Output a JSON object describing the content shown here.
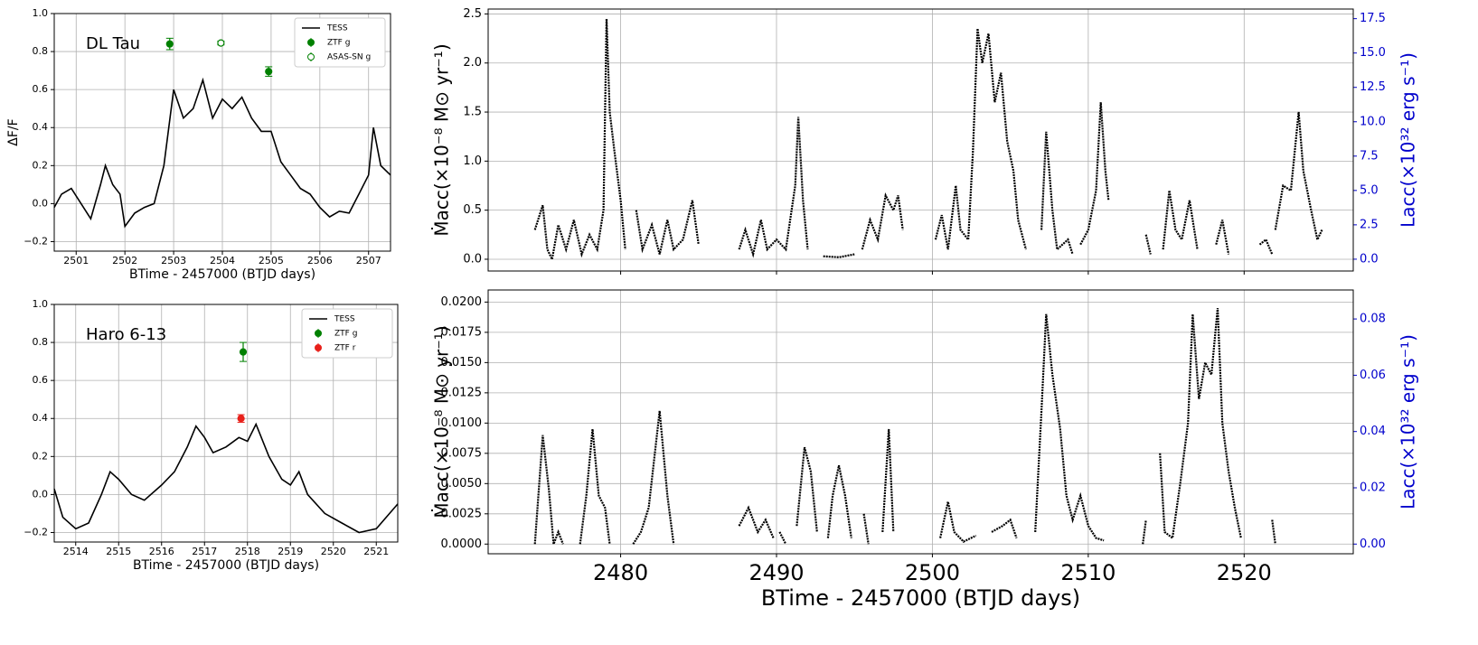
{
  "chart_data": [
    {
      "type": "line",
      "annotation": "DL Tau",
      "ylabel": "ΔF/F",
      "xlabel": "BTime - 2457000 (BTJD days)",
      "xlim": [
        2500.55,
        2507.45
      ],
      "xticks": [
        2501,
        2502,
        2503,
        2504,
        2505,
        2506,
        2507
      ],
      "ylim": [
        -0.25,
        1.0
      ],
      "yticks": [
        {
          "value": -0.2,
          "label": "−0.2"
        },
        {
          "value": 0,
          "label": "0.0"
        },
        0.2,
        0.4,
        0.6,
        0.8,
        {
          "value": 1,
          "label": "1.0"
        }
      ],
      "grid": true,
      "legend": "upper right",
      "series": [
        {
          "name": "TESS",
          "color": "#000000",
          "x": [
            2500.55,
            2500.7,
            2500.9,
            2501.1,
            2501.3,
            2501.5,
            2501.6,
            2501.75,
            2501.9,
            2502.0,
            2502.2,
            2502.4,
            2502.6,
            2502.8,
            2503.0,
            2503.2,
            2503.4,
            2503.6,
            2503.8,
            2504.0,
            2504.2,
            2504.4,
            2504.6,
            2504.8,
            2505.0,
            2505.2,
            2505.4,
            2505.6,
            2505.8,
            2506.0,
            2506.2,
            2506.4,
            2506.6,
            2506.8,
            2507.0,
            2507.1,
            2507.25,
            2507.45
          ],
          "values": [
            -0.02,
            0.05,
            0.08,
            0.0,
            -0.08,
            0.1,
            0.2,
            0.1,
            0.05,
            -0.12,
            -0.05,
            -0.02,
            0.0,
            0.2,
            0.6,
            0.45,
            0.5,
            0.65,
            0.45,
            0.55,
            0.5,
            0.56,
            0.45,
            0.38,
            0.38,
            0.22,
            0.15,
            0.08,
            0.05,
            -0.02,
            -0.07,
            -0.04,
            -0.05,
            0.05,
            0.15,
            0.4,
            0.2,
            0.15
          ]
        },
        {
          "name": "ZTF g",
          "color": "#008000",
          "marker": "filled",
          "x": [
            2502.92,
            2504.95
          ],
          "values": [
            0.84,
            0.695
          ],
          "errors": [
            0.03,
            0.025
          ]
        },
        {
          "name": "ASAS-SN g",
          "color": "#008000",
          "marker": "open",
          "x": [
            2503.97
          ],
          "values": [
            0.845
          ],
          "errors": [
            0.01
          ]
        }
      ]
    },
    {
      "type": "line",
      "annotation": "Haro 6-13",
      "xlabel": "BTime - 2457000 (BTJD days)",
      "xlim": [
        2513.5,
        2521.5
      ],
      "xticks": [
        2514,
        2515,
        2516,
        2517,
        2518,
        2519,
        2520,
        2521
      ],
      "ylim": [
        -0.25,
        1.0
      ],
      "yticks": [
        {
          "value": -0.2,
          "label": "−0.2"
        },
        {
          "value": 0,
          "label": "0.0"
        },
        0.2,
        0.4,
        0.6,
        0.8,
        {
          "value": 1,
          "label": "1.0"
        }
      ],
      "grid": true,
      "legend": "upper right",
      "series": [
        {
          "name": "TESS",
          "color": "#000000",
          "x": [
            2513.5,
            2513.7,
            2514,
            2514.3,
            2514.6,
            2514.8,
            2515,
            2515.3,
            2515.6,
            2516,
            2516.3,
            2516.6,
            2516.8,
            2517,
            2517.2,
            2517.5,
            2517.8,
            2518,
            2518.2,
            2518.5,
            2518.8,
            2519,
            2519.2,
            2519.4,
            2519.8,
            2520.2,
            2520.6,
            2521,
            2521.5
          ],
          "values": [
            0.03,
            -0.12,
            -0.18,
            -0.15,
            0.0,
            0.12,
            0.08,
            0.0,
            -0.03,
            0.05,
            0.12,
            0.25,
            0.36,
            0.3,
            0.22,
            0.25,
            0.3,
            0.28,
            0.37,
            0.2,
            0.08,
            0.05,
            0.12,
            0.0,
            -0.1,
            -0.15,
            -0.2,
            -0.18,
            -0.05
          ]
        },
        {
          "name": "ZTF g",
          "color": "#008000",
          "marker": "filled",
          "x": [
            2517.9
          ],
          "values": [
            0.75
          ],
          "errors": [
            0.05
          ]
        },
        {
          "name": "ZTF r",
          "color": "#e8201a",
          "marker": "filled",
          "x": [
            2517.85
          ],
          "values": [
            0.4
          ],
          "errors": [
            0.02
          ]
        }
      ]
    },
    {
      "type": "line",
      "ylabel": "Ṁacc(×10⁻⁸ M⊙ yr⁻¹)",
      "y2label": "Lacc(×10³² erg s⁻¹)",
      "y2color": "#0000cc",
      "xlim": [
        2471.5,
        2527
      ],
      "ylim": [
        -0.12,
        2.55
      ],
      "yticks": [
        {
          "value": 0,
          "label": "0.0"
        },
        0.5,
        {
          "value": 1,
          "label": "1.0"
        },
        1.5,
        {
          "value": 2,
          "label": "2.0"
        },
        2.5
      ],
      "y2lim": [
        -0.86,
        18.2
      ],
      "y2ticks": [
        {
          "value": 0,
          "label": "0.0"
        },
        2.5,
        {
          "value": 5,
          "label": "5.0"
        },
        7.5,
        {
          "value": 10,
          "label": "10.0"
        },
        12.5,
        {
          "value": 15,
          "label": "15.0"
        },
        17.5
      ],
      "grid": true,
      "series": [
        {
          "color": "#000000",
          "x": [
            2474.5,
            2475,
            2475.3,
            2475.6,
            2476,
            2476.5,
            2477,
            2477.5,
            2478,
            2478.5,
            2478.9,
            2479.1,
            2479.3,
            2479.6,
            2480,
            2480.3,
            null,
            2481,
            2481.4,
            2482,
            2482.5,
            2483,
            2483.4,
            2484,
            2484.6,
            2485,
            null,
            2487.6,
            2488,
            2488.5,
            2489,
            2489.4,
            2490,
            2490.6,
            2491.2,
            2491.4,
            2491.7,
            2492,
            null,
            2493,
            2494,
            2495,
            null,
            2495.5,
            2496,
            2496.5,
            2497,
            2497.5,
            2497.8,
            2498.1,
            null,
            2500.2,
            2500.6,
            2501,
            2501.5,
            2501.8,
            2502.3,
            2502.6,
            2502.9,
            2503.2,
            2503.6,
            2504,
            2504.4,
            2504.8,
            2505.2,
            2505.5,
            2506,
            null,
            2507,
            2507.3,
            2507.7,
            2508,
            2508.7,
            2509,
            null,
            2509.5,
            2510,
            2510.5,
            2510.8,
            2511.1,
            2511.3,
            null,
            2513.7,
            2514,
            null,
            2514.8,
            2515.2,
            2515.6,
            2516,
            2516.5,
            2517,
            null,
            2518.2,
            2518.6,
            2519,
            null,
            2521,
            2521.4,
            2521.8,
            null,
            2522,
            2522.5,
            2523,
            2523.5,
            2523.8,
            2524.3,
            2524.7,
            2525
          ],
          "values": [
            0.3,
            0.55,
            0.1,
            0.0,
            0.35,
            0.1,
            0.4,
            0.05,
            0.25,
            0.1,
            0.5,
            2.45,
            1.5,
            1.1,
            0.6,
            0.1,
            null,
            0.5,
            0.1,
            0.35,
            0.05,
            0.4,
            0.1,
            0.2,
            0.6,
            0.15,
            null,
            0.1,
            0.3,
            0.05,
            0.4,
            0.1,
            0.2,
            0.1,
            0.75,
            1.45,
            0.6,
            0.1,
            null,
            0.03,
            0.02,
            0.05,
            null,
            0.1,
            0.4,
            0.2,
            0.65,
            0.5,
            0.65,
            0.3,
            null,
            0.2,
            0.45,
            0.1,
            0.75,
            0.3,
            0.2,
            1.1,
            2.35,
            2.0,
            2.3,
            1.6,
            1.9,
            1.2,
            0.9,
            0.4,
            0.1,
            null,
            0.3,
            1.3,
            0.5,
            0.1,
            0.2,
            0.05,
            null,
            0.15,
            0.3,
            0.7,
            1.6,
            0.9,
            0.6,
            null,
            0.25,
            0.05,
            null,
            0.1,
            0.7,
            0.3,
            0.2,
            0.6,
            0.1,
            null,
            0.15,
            0.4,
            0.05,
            null,
            0.15,
            0.2,
            0.05,
            null,
            0.3,
            0.75,
            0.7,
            1.5,
            0.9,
            0.5,
            0.2,
            0.3
          ]
        }
      ]
    },
    {
      "type": "line",
      "ylabel": "Ṁacc(×10⁻⁸ M⊙ yr⁻¹)",
      "y2label": "Lacc(×10³² erg s⁻¹)",
      "y2color": "#0000cc",
      "xlabel": "BTime - 2457000 (BTJD days)",
      "xlim": [
        2471.5,
        2527
      ],
      "xticks": [
        2480,
        2490,
        2500,
        2510,
        2520
      ],
      "ylim": [
        -0.0008,
        0.021
      ],
      "yticks": [
        {
          "value": 0,
          "label": "0.0000"
        },
        {
          "value": 0.0025,
          "label": "0.0025"
        },
        {
          "value": 0.005,
          "label": "0.0050"
        },
        {
          "value": 0.0075,
          "label": "0.0075"
        },
        {
          "value": 0.01,
          "label": "0.0100"
        },
        {
          "value": 0.0125,
          "label": "0.0125"
        },
        {
          "value": 0.015,
          "label": "0.0150"
        },
        {
          "value": 0.0175,
          "label": "0.0175"
        },
        {
          "value": 0.02,
          "label": "0.0200"
        }
      ],
      "y2lim": [
        -0.00344,
        0.0903
      ],
      "y2ticks": [
        {
          "value": 0,
          "label": "0.00"
        },
        0.02,
        0.04,
        0.06,
        0.08
      ],
      "grid": true,
      "series": [
        {
          "color": "#000000",
          "x": [
            2474.5,
            2475,
            2475.4,
            2475.7,
            2476,
            2476.3,
            null,
            2477.4,
            2477.8,
            2478.2,
            2478.6,
            2479,
            2479.3,
            null,
            2480.8,
            2481.3,
            2481.8,
            2482.5,
            2483,
            2483.4,
            null,
            2487.6,
            2488.2,
            2488.8,
            2489.3,
            2489.8,
            null,
            2490.2,
            2490.6,
            null,
            2491.3,
            2491.8,
            2492.2,
            2492.6,
            null,
            2493.3,
            2493.6,
            2494,
            2494.4,
            2494.8,
            null,
            2495.6,
            2495.9,
            null,
            2496.8,
            2497.2,
            2497.5,
            null,
            2500.5,
            2501,
            2501.4,
            2502,
            2502.8,
            null,
            2503.8,
            2504.5,
            2505,
            2505.4,
            null,
            2506.6,
            2507,
            2507.3,
            2507.7,
            2508.2,
            2508.6,
            2509,
            2509.5,
            2510,
            2510.5,
            2511,
            null,
            2513.5,
            2513.7,
            null,
            2514.6,
            2514.9,
            2515.4,
            2515.9,
            2516.4,
            2516.7,
            2517.1,
            2517.5,
            2517.9,
            2518.3,
            2518.6,
            2519,
            2519.4,
            2519.8,
            null,
            2521.8,
            2522
          ],
          "values": [
            0.0,
            0.009,
            0.0045,
            0.0,
            0.001,
            0.0,
            null,
            0.0,
            0.004,
            0.0095,
            0.004,
            0.003,
            0.0,
            null,
            0.0,
            0.001,
            0.003,
            0.011,
            0.004,
            0.0,
            null,
            0.0015,
            0.003,
            0.001,
            0.002,
            0.0005,
            null,
            0.001,
            0.0,
            null,
            0.0015,
            0.008,
            0.006,
            0.001,
            null,
            0.0005,
            0.004,
            0.0065,
            0.004,
            0.0005,
            null,
            0.0025,
            0.0,
            null,
            0.001,
            0.0095,
            0.001,
            null,
            0.0005,
            0.0035,
            0.001,
            0.0002,
            0.0007,
            null,
            0.001,
            0.0015,
            0.002,
            0.0005,
            null,
            0.001,
            0.011,
            0.019,
            0.014,
            0.0095,
            0.004,
            0.002,
            0.004,
            0.0015,
            0.0005,
            0.0003,
            null,
            0.0,
            0.002,
            null,
            0.0075,
            0.001,
            0.0005,
            0.005,
            0.01,
            0.019,
            0.012,
            0.015,
            0.014,
            0.0195,
            0.01,
            0.006,
            0.003,
            0.0005,
            null,
            0.002,
            0.0
          ]
        }
      ]
    }
  ]
}
